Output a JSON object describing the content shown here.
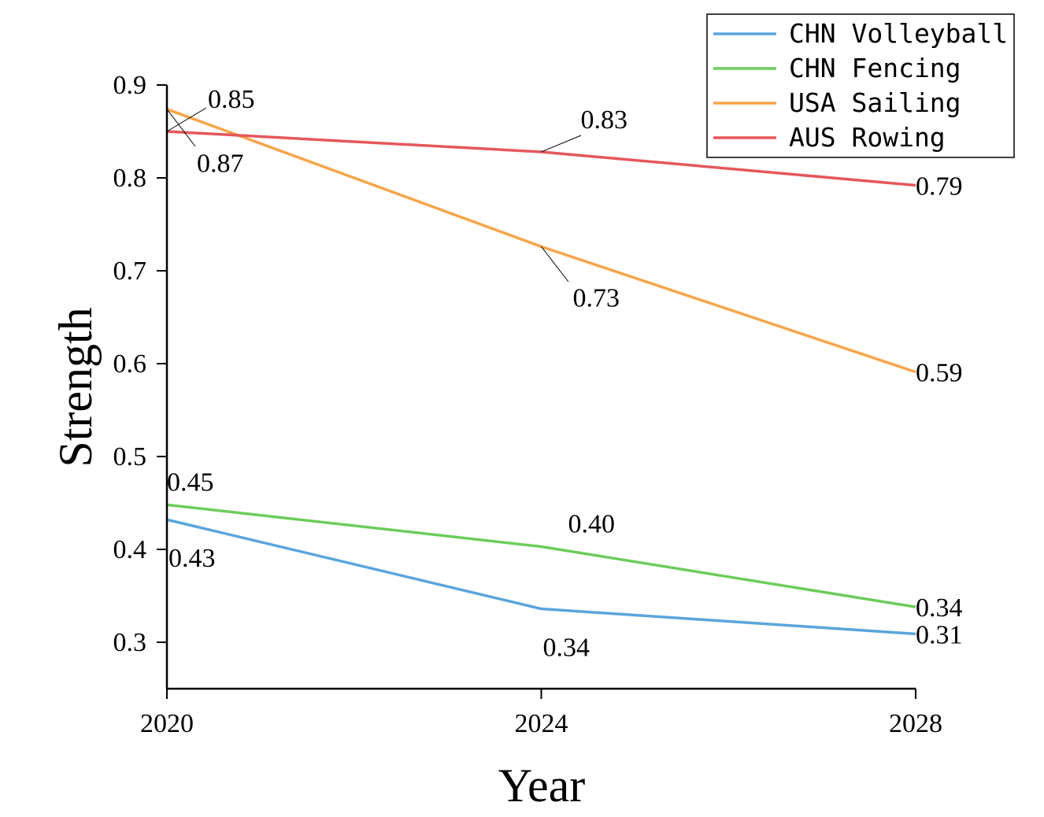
{
  "chart_data": {
    "type": "line",
    "x": [
      2020,
      2024,
      2028
    ],
    "xlabel": "Year",
    "ylabel": "Strength",
    "xticks": [
      "2020",
      "2024",
      "2028"
    ],
    "yticks": [
      "0.3",
      "0.4",
      "0.5",
      "0.6",
      "0.7",
      "0.8",
      "0.9"
    ],
    "ylim": [
      0.25,
      0.9
    ],
    "grid": false,
    "legend_position": "top-right",
    "series": [
      {
        "name": "CHN Volleyball",
        "color": "#5aa5dc",
        "values": [
          0.432,
          0.336,
          0.309
        ],
        "labels": [
          "0.43",
          "0.34",
          "0.31"
        ]
      },
      {
        "name": "CHN Fencing",
        "color": "#6dcc5c",
        "values": [
          0.448,
          0.403,
          0.338
        ],
        "labels": [
          "0.45",
          "0.40",
          "0.34"
        ]
      },
      {
        "name": "USA Sailing",
        "color": "#f7a54a",
        "values": [
          0.874,
          0.726,
          0.591
        ],
        "labels": [
          "0.87",
          "0.73",
          "0.59"
        ]
      },
      {
        "name": "AUS Rowing",
        "color": "#e5575c",
        "values": [
          0.85,
          0.828,
          0.792
        ],
        "labels": [
          "0.85",
          "0.83",
          "0.79"
        ]
      }
    ]
  }
}
